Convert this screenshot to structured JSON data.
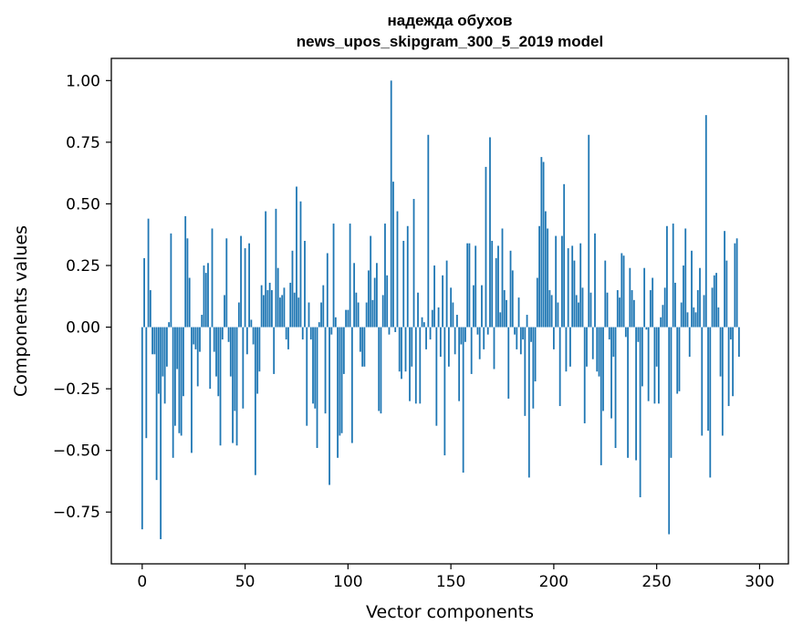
{
  "chart_data": {
    "type": "bar",
    "title": "надежда обухов",
    "subtitle": "news_upos_skipgram_300_5_2019 model",
    "xlabel": "Vector components",
    "ylabel": "Components values",
    "xlim": [
      -15,
      314
    ],
    "ylim": [
      -0.96,
      1.09
    ],
    "xticks": [
      0,
      50,
      100,
      150,
      200,
      250,
      300
    ],
    "xtick_labels": [
      "0",
      "50",
      "100",
      "150",
      "200",
      "250",
      "300"
    ],
    "yticks": [
      1.0,
      0.75,
      0.5,
      0.25,
      0.0,
      -0.25,
      -0.5,
      -0.75
    ],
    "ytick_labels": [
      "1.00",
      "0.75",
      "0.50",
      "0.25",
      "0.00",
      "−0.25",
      "−0.50",
      "−0.75"
    ],
    "grid": false,
    "bar_color": "#1f77b4",
    "x": "0..299 (component index)",
    "values": [
      -0.82,
      0.28,
      -0.45,
      0.44,
      0.15,
      -0.11,
      -0.11,
      -0.62,
      -0.27,
      -0.86,
      -0.2,
      -0.31,
      -0.16,
      0.02,
      0.38,
      -0.53,
      -0.4,
      -0.17,
      -0.43,
      -0.44,
      -0.28,
      0.45,
      0.36,
      0.2,
      -0.51,
      -0.07,
      -0.09,
      -0.24,
      -0.1,
      0.05,
      0.25,
      0.22,
      0.26,
      -0.25,
      0.4,
      -0.1,
      -0.2,
      -0.28,
      -0.48,
      -0.05,
      0.13,
      0.36,
      -0.06,
      -0.2,
      -0.47,
      -0.34,
      -0.48,
      0.1,
      0.37,
      -0.33,
      0.32,
      -0.11,
      0.34,
      0.03,
      -0.07,
      -0.6,
      -0.27,
      -0.18,
      0.17,
      0.13,
      0.47,
      0.15,
      0.18,
      0.15,
      -0.19,
      0.48,
      0.24,
      0.12,
      0.13,
      0.16,
      -0.05,
      -0.09,
      0.18,
      0.31,
      0.14,
      0.57,
      0.12,
      0.51,
      -0.05,
      0.35,
      -0.4,
      0.1,
      -0.05,
      -0.31,
      -0.33,
      -0.49,
      0.02,
      0.1,
      0.17,
      -0.35,
      0.3,
      -0.64,
      -0.03,
      0.42,
      0.04,
      -0.53,
      -0.44,
      -0.43,
      -0.19,
      0.07,
      0.07,
      0.42,
      -0.47,
      0.26,
      0.14,
      0.1,
      -0.1,
      -0.16,
      -0.16,
      0.1,
      0.23,
      0.37,
      0.11,
      0.2,
      0.26,
      -0.34,
      -0.35,
      0.13,
      0.42,
      0.21,
      -0.03,
      1.0,
      0.59,
      -0.02,
      0.47,
      -0.18,
      -0.21,
      0.35,
      -0.18,
      0.41,
      -0.3,
      -0.16,
      0.52,
      -0.31,
      0.14,
      -0.31,
      0.04,
      0.02,
      -0.09,
      0.78,
      -0.05,
      0.07,
      0.25,
      -0.4,
      0.08,
      -0.12,
      0.21,
      -0.52,
      0.27,
      -0.16,
      0.16,
      0.1,
      -0.11,
      0.05,
      -0.3,
      -0.07,
      -0.59,
      -0.06,
      0.34,
      0.34,
      -0.19,
      0.17,
      0.33,
      -0.03,
      -0.13,
      0.17,
      -0.09,
      0.65,
      -0.03,
      0.77,
      0.35,
      -0.17,
      0.28,
      0.33,
      0.06,
      0.4,
      0.15,
      0.11,
      -0.29,
      0.31,
      0.23,
      -0.03,
      -0.09,
      0.12,
      -0.11,
      -0.05,
      -0.36,
      0.05,
      -0.61,
      -0.06,
      -0.33,
      -0.22,
      0.2,
      0.41,
      0.69,
      0.67,
      0.47,
      0.4,
      0.15,
      0.13,
      -0.09,
      0.37,
      0.1,
      -0.32,
      0.37,
      0.58,
      -0.18,
      0.32,
      -0.16,
      0.33,
      0.27,
      0.13,
      0.1,
      0.34,
      0.16,
      -0.39,
      -0.16,
      0.78,
      0.14,
      -0.13,
      0.38,
      -0.18,
      -0.2,
      -0.56,
      -0.34,
      0.27,
      0.14,
      -0.05,
      -0.37,
      -0.12,
      -0.49,
      0.15,
      0.12,
      0.3,
      0.29,
      -0.04,
      -0.53,
      0.24,
      0.15,
      0.11,
      -0.54,
      -0.06,
      -0.69,
      -0.24,
      0.24,
      -0.01,
      -0.3,
      0.15,
      0.2,
      -0.31,
      -0.16,
      -0.31,
      0.04,
      0.09,
      0.16,
      0.41,
      -0.84,
      -0.53,
      0.42,
      0.18,
      -0.27,
      -0.26,
      0.1,
      0.25,
      0.4,
      0.06,
      -0.12,
      0.31,
      0.08,
      0.06,
      0.15,
      0.24,
      -0.44,
      0.13,
      0.86,
      -0.42,
      -0.61,
      0.16,
      0.21,
      0.22,
      0.08,
      -0.2,
      -0.44,
      0.39,
      0.27,
      -0.32,
      -0.05,
      -0.28,
      0.34,
      0.36,
      -0.12
    ]
  }
}
